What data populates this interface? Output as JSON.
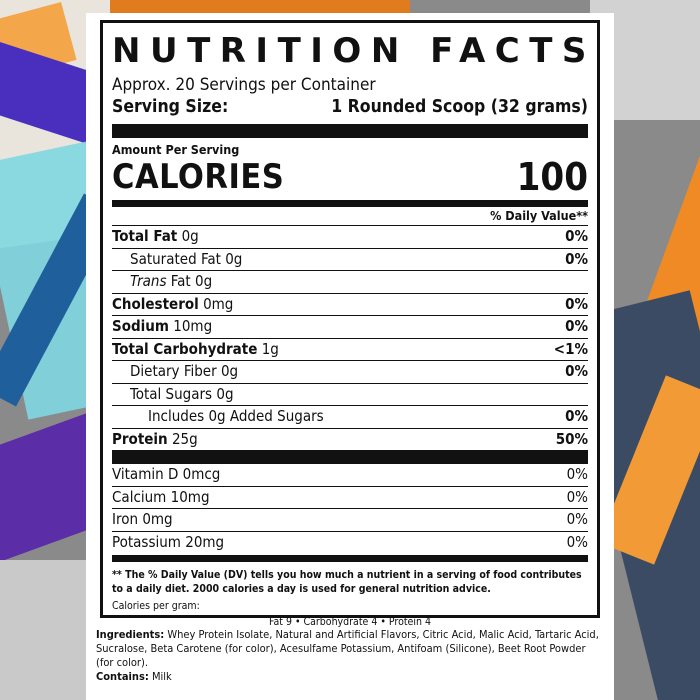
{
  "label": {
    "title": "NUTRITION FACTS",
    "servings_per_container": "Approx. 20 Servings per Container",
    "serving_size_label": "Serving Size:",
    "serving_size_value": "1 Rounded Scoop (32 grams)",
    "amount_per_serving": "Amount Per Serving",
    "calories_label": "CALORIES",
    "calories_value": "100",
    "daily_value_header": "% Daily Value**",
    "nutrients": [
      {
        "name": "Total Fat",
        "amount": "0g",
        "dv": "0%"
      },
      {
        "name": "Saturated Fat",
        "amount": "0g",
        "dv": "0%"
      },
      {
        "name": "Trans",
        "name_suffix": " Fat",
        "amount": "0g",
        "dv": ""
      },
      {
        "name": "Cholesterol",
        "amount": "0mg",
        "dv": "0%"
      },
      {
        "name": "Sodium",
        "amount": "10mg",
        "dv": "0%"
      },
      {
        "name": "Total Carbohydrate",
        "amount": "1g",
        "dv": "<1%"
      },
      {
        "name": "Dietary Fiber",
        "amount": "0g",
        "dv": "0%"
      },
      {
        "name": "Total Sugars",
        "amount": "0g",
        "dv": ""
      },
      {
        "name": "Includes 0g Added Sugars",
        "amount": "",
        "dv": "0%"
      },
      {
        "name": "Protein",
        "amount": "25g",
        "dv": "50%"
      }
    ],
    "vitamins": [
      {
        "name": "Vitamin D",
        "amount": "0mcg",
        "dv": "0%"
      },
      {
        "name": "Calcium",
        "amount": "10mg",
        "dv": "0%"
      },
      {
        "name": "Iron",
        "amount": "0mg",
        "dv": "0%"
      },
      {
        "name": "Potassium",
        "amount": "20mg",
        "dv": "0%"
      }
    ],
    "footnote": "** The % Daily Value (DV) tells you how much a nutrient in a serving of food contributes to a daily diet. 2000 calories a day is used for general nutrition advice.",
    "calories_per_gram_label": "Calories per gram:",
    "calories_per_gram_values": "Fat 9 • Carbohydrate 4 • Protein 4"
  },
  "ingredients": {
    "label": "Ingredients:",
    "text": " Whey Protein Isolate, Natural and Artificial Flavors, Citric Acid, Malic Acid, Tartaric Acid, Sucralose, Beta Carotene (for color), Acesulfame Potassium, Antifoam (Silicone), Beet Root Powder (for color).",
    "contains_label": "Contains:",
    "contains_text": " Milk"
  },
  "colors": {
    "label_ink": "#111111",
    "panel": "#ffffff",
    "accent_orange": "#f08a24",
    "accent_purple": "#5b2ea8",
    "accent_cyan": "#7fd6e0"
  }
}
